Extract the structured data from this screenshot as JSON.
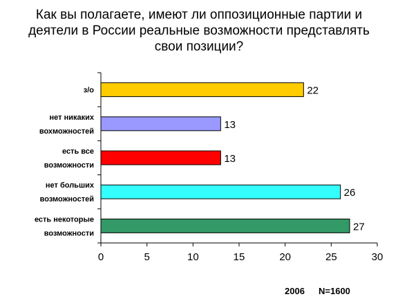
{
  "chart_data": {
    "type": "bar",
    "orientation": "horizontal",
    "title_lines": [
      "Как вы полагаете, имеют ли оппозиционные партии и",
      "деятели в России реальные возможности представлять",
      "свои позиции?"
    ],
    "categories": [
      [
        "з/о"
      ],
      [
        "нет никаких",
        "вохможностей"
      ],
      [
        "есть все",
        "возможности"
      ],
      [
        "нет больших",
        "возможностей"
      ],
      [
        "есть некоторые",
        "возможности"
      ]
    ],
    "values": [
      22,
      13,
      13,
      26,
      27
    ],
    "bar_colors": [
      "#FFCC00",
      "#9999FF",
      "#FF0000",
      "#33FFFF",
      "#339966"
    ],
    "xlim": [
      0,
      30
    ],
    "x_ticks": [
      0,
      5,
      10,
      15,
      20,
      25,
      30
    ],
    "grid": false,
    "legend": false
  },
  "footer": {
    "year": "2006",
    "sample": "N=1600"
  }
}
